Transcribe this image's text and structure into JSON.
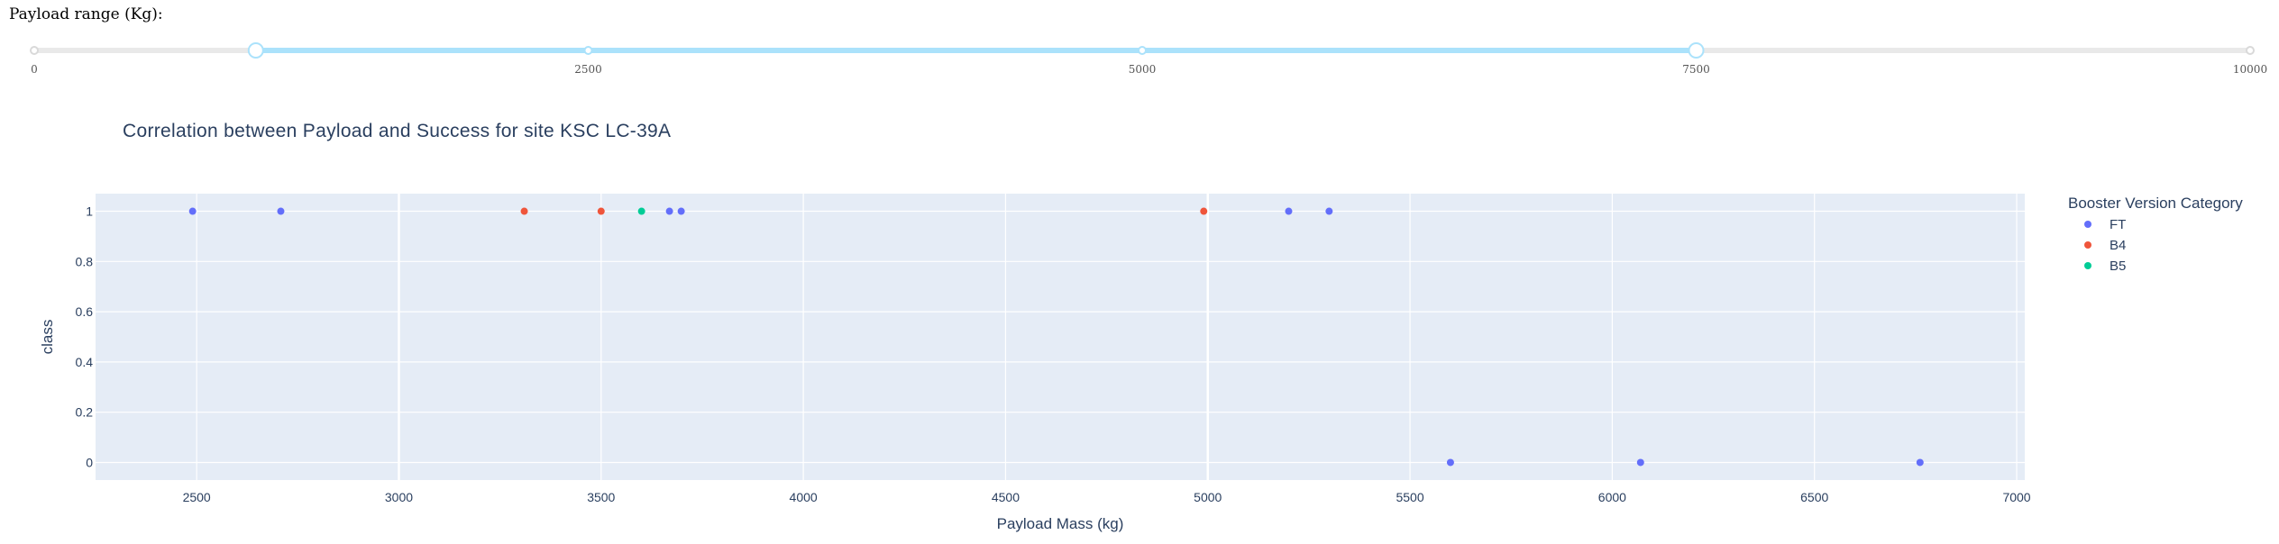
{
  "range_slider": {
    "label": "Payload range (Kg):",
    "min": 0,
    "max": 10000,
    "marks": [
      "0",
      "2500",
      "5000",
      "7500",
      "10000"
    ],
    "mark_values": [
      0,
      2500,
      5000,
      7500,
      10000
    ],
    "value": [
      1000,
      7500
    ],
    "track_color": "#e9e9e9",
    "active_color": "#abe2fb"
  },
  "chart_data": {
    "type": "scatter",
    "title": "Correlation between Payload and Success for site KSC LC-39A",
    "xlabel": "Payload Mass (kg)",
    "ylabel": "class",
    "xlim": [
      2250,
      7020
    ],
    "ylim": [
      -0.07,
      1.07
    ],
    "x_ticks": [
      2500,
      3000,
      3500,
      4000,
      4500,
      5000,
      5500,
      6000,
      6500,
      7000
    ],
    "y_ticks": [
      0,
      0.2,
      0.4,
      0.6,
      0.8,
      1
    ],
    "y_tick_labels": [
      "0",
      "0.2",
      "0.4",
      "0.6",
      "0.8",
      "1"
    ],
    "grid": true,
    "plot_bgcolor": "#e5ecf6",
    "legend": {
      "title": "Booster Version Category",
      "placement": "right"
    },
    "series": [
      {
        "name": "FT",
        "color": "#636efa",
        "x": [
          2490,
          2708,
          3669,
          3698,
          5200,
          5300,
          5600,
          6070,
          6761
        ],
        "y": [
          1,
          1,
          1,
          1,
          1,
          1,
          0,
          0,
          0
        ]
      },
      {
        "name": "B4",
        "color": "#ef553b",
        "x": [
          3310,
          3500,
          4990
        ],
        "y": [
          1,
          1,
          1
        ]
      },
      {
        "name": "B5",
        "color": "#00cc96",
        "x": [
          3600
        ],
        "y": [
          1
        ]
      }
    ]
  }
}
